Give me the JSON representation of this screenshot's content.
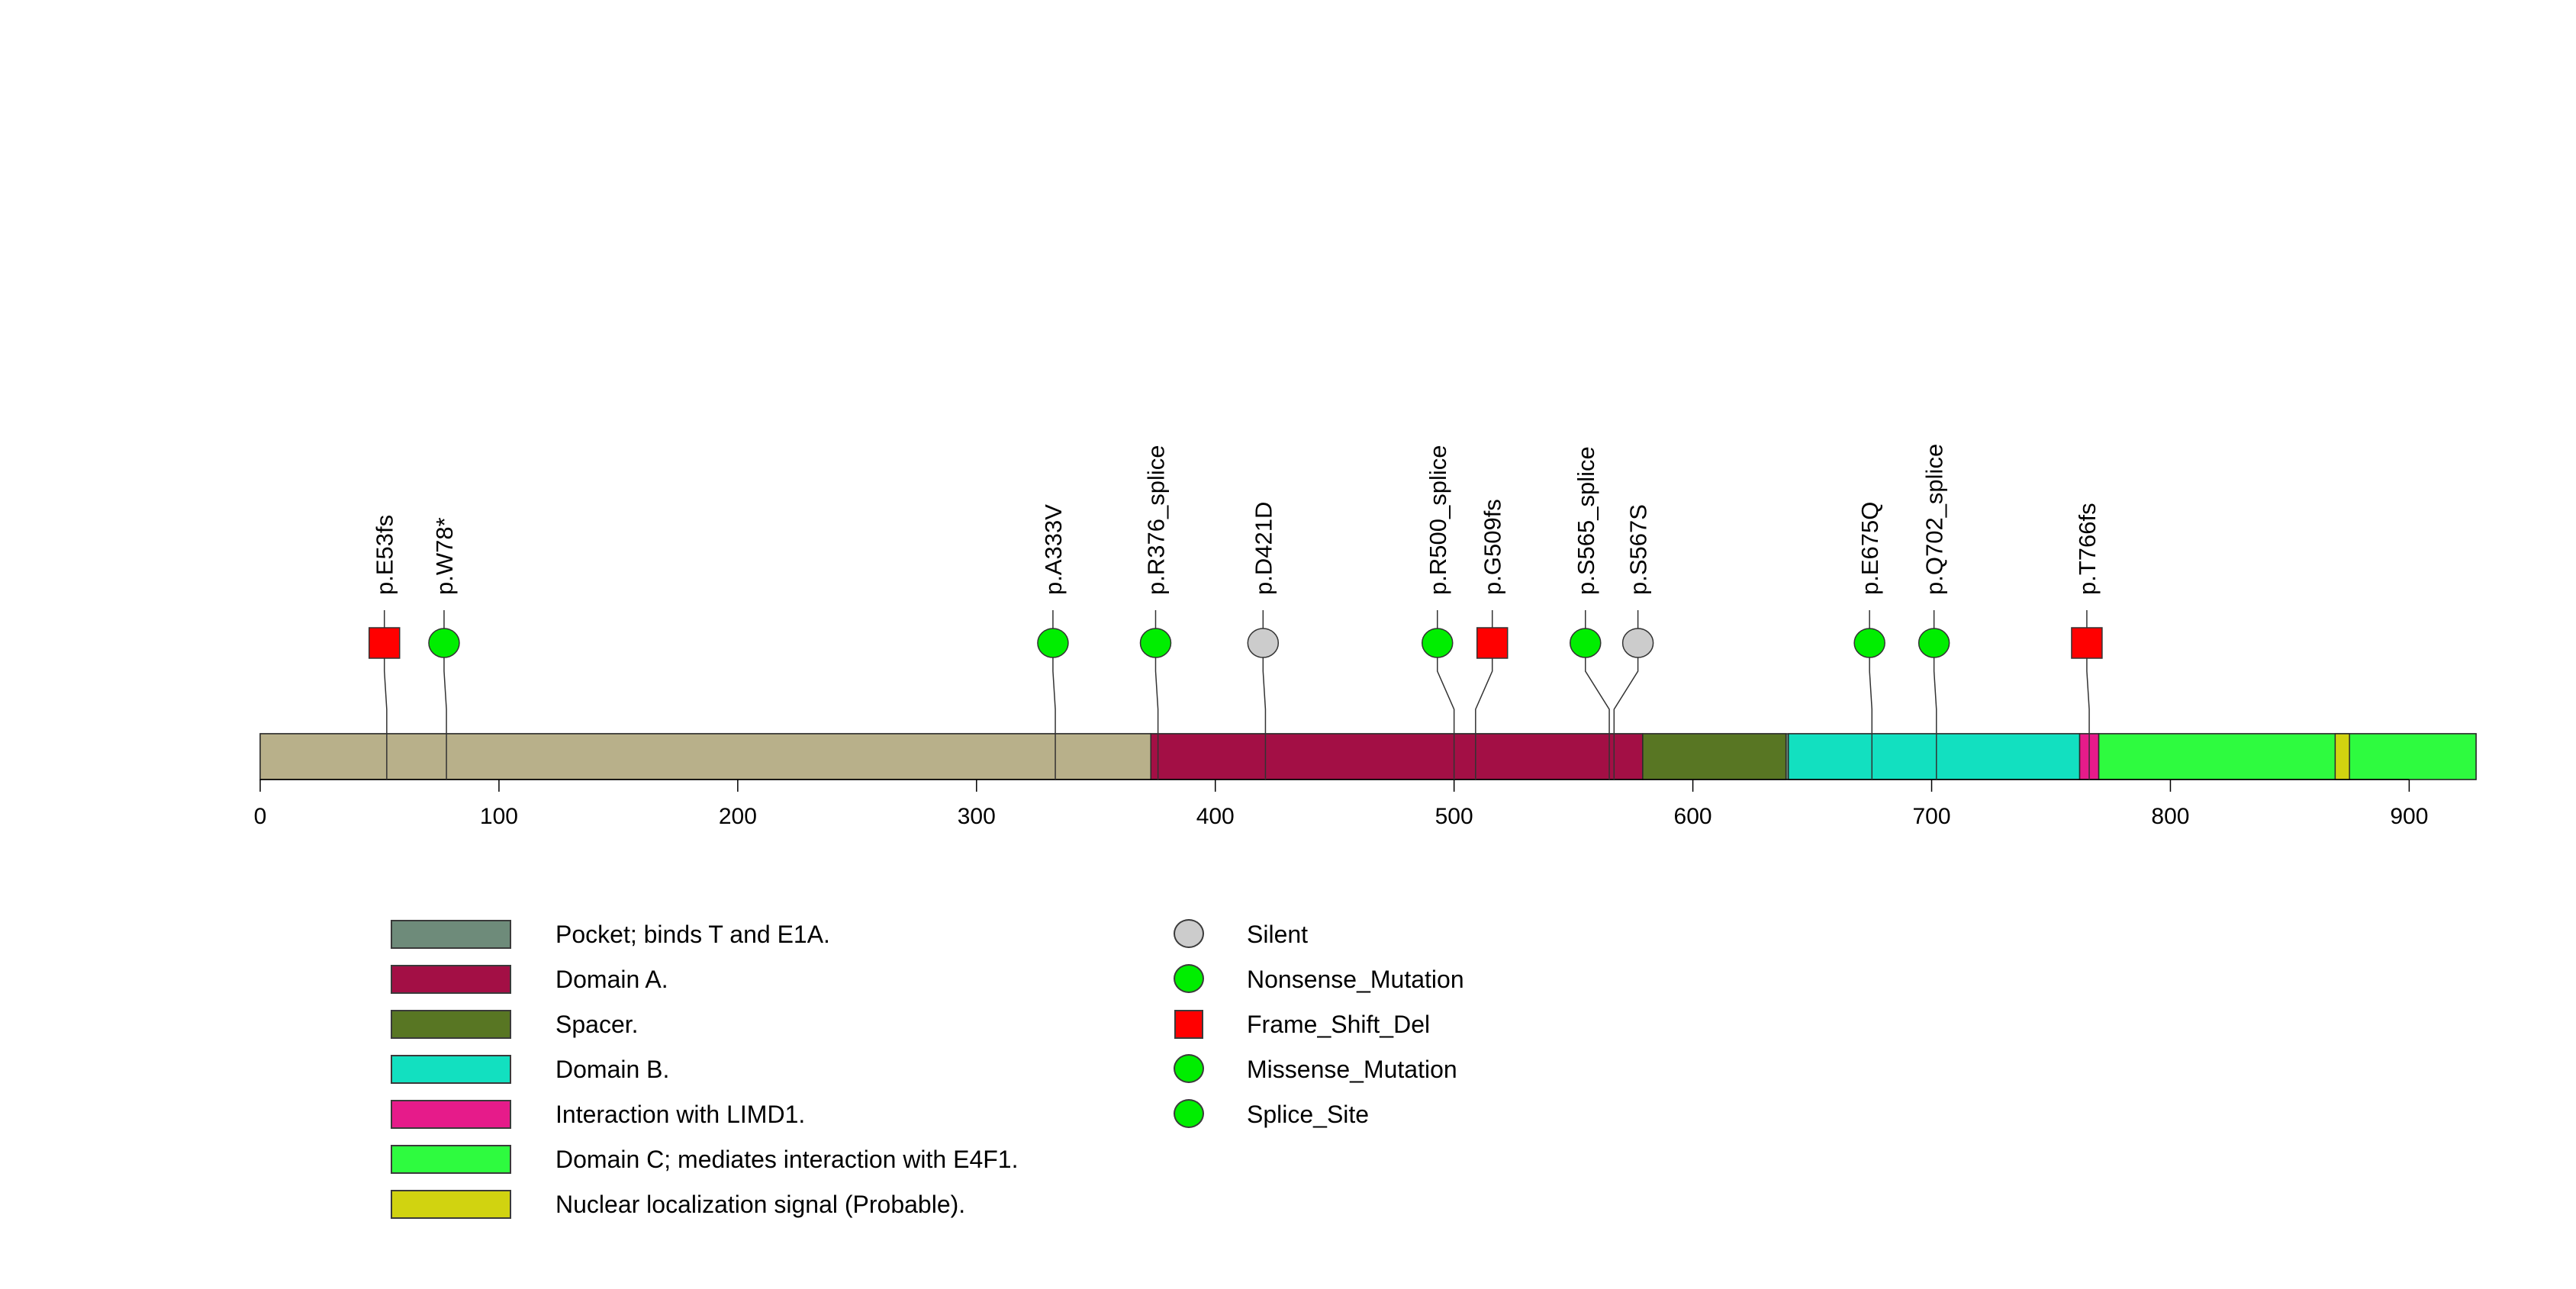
{
  "chart_data": {
    "type": "lollipop",
    "protein_length": 928,
    "xlim": [
      0,
      928
    ],
    "x_ticks": [
      0,
      100,
      200,
      300,
      400,
      500,
      600,
      700,
      800,
      900
    ],
    "domains": [
      {
        "name": "Pocket; binds T and E1A.",
        "start": 0,
        "end": 928,
        "color": "#6E8B7A",
        "legend": true
      },
      {
        "name": "backbone",
        "start": 0,
        "end": 373,
        "color": "#B8B08A",
        "legend": false
      },
      {
        "name": "Domain A.",
        "start": 373,
        "end": 579,
        "color": "#A30F45",
        "legend": true
      },
      {
        "name": "Spacer.",
        "start": 579,
        "end": 639,
        "color": "#587623",
        "legend": true
      },
      {
        "name": "Domain B.",
        "start": 640,
        "end": 762,
        "color": "#12E0C0",
        "legend": true
      },
      {
        "name": "Interaction with LIMD1.",
        "start": 762,
        "end": 770,
        "color": "#E61B8A",
        "legend": true
      },
      {
        "name": "Domain C; mediates interaction with E4F1.",
        "start": 770,
        "end": 928,
        "color": "#2EFB3F",
        "legend": true
      },
      {
        "name": "Nuclear localization signal (Probable).",
        "start": 869,
        "end": 875,
        "color": "#D1D310",
        "legend": true
      }
    ],
    "mutation_types": [
      {
        "name": "Silent",
        "shape": "circle",
        "color": "#CCCCCC"
      },
      {
        "name": "Nonsense_Mutation",
        "shape": "circle",
        "color": "#00EE00"
      },
      {
        "name": "Frame_Shift_Del",
        "shape": "square",
        "color": "#FF0000"
      },
      {
        "name": "Missense_Mutation",
        "shape": "circle",
        "color": "#00EE00"
      },
      {
        "name": "Splice_Site",
        "shape": "circle",
        "color": "#00EE00"
      }
    ],
    "mutations": [
      {
        "label": "p.E53fs",
        "position": 53,
        "marker_position": 52,
        "type": "Frame_Shift_Del"
      },
      {
        "label": "p.W78*",
        "position": 78,
        "marker_position": 77,
        "type": "Nonsense_Mutation"
      },
      {
        "label": "p.A333V",
        "position": 333,
        "marker_position": 332,
        "type": "Missense_Mutation"
      },
      {
        "label": "p.R376_splice",
        "position": 376,
        "marker_position": 375,
        "type": "Splice_Site"
      },
      {
        "label": "p.D421D",
        "position": 421,
        "marker_position": 420,
        "type": "Silent"
      },
      {
        "label": "p.R500_splice",
        "position": 500,
        "marker_position": 493,
        "type": "Splice_Site"
      },
      {
        "label": "p.G509fs",
        "position": 509,
        "marker_position": 516,
        "type": "Frame_Shift_Del"
      },
      {
        "label": "p.S565_splice",
        "position": 565,
        "marker_position": 555,
        "type": "Splice_Site"
      },
      {
        "label": "p.S567S",
        "position": 567,
        "marker_position": 577,
        "type": "Silent"
      },
      {
        "label": "p.E675Q",
        "position": 675,
        "marker_position": 674,
        "type": "Missense_Mutation"
      },
      {
        "label": "p.Q702_splice",
        "position": 702,
        "marker_position": 701,
        "type": "Splice_Site"
      },
      {
        "label": "p.T766fs",
        "position": 766,
        "marker_position": 765,
        "type": "Frame_Shift_Del"
      }
    ]
  }
}
